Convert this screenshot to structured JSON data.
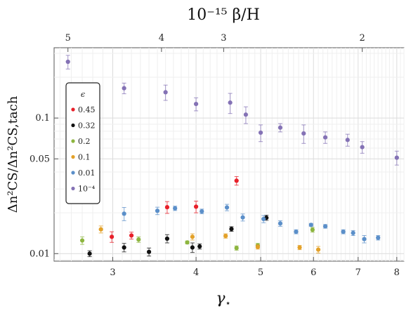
{
  "chart_data": {
    "type": "scatter",
    "xscale": "log",
    "yscale": "log",
    "xlim": [
      2.45,
      8.2
    ],
    "ylim": [
      0.0088,
      0.33
    ],
    "xticks": [
      3,
      4,
      5,
      6,
      7,
      8
    ],
    "yticks": [
      0.01,
      0.05,
      0.1
    ],
    "ytick_labels": [
      "0.01",
      "0.05",
      "0.1"
    ],
    "top_ticks": [
      {
        "gamma": 2.57,
        "label": "5"
      },
      {
        "gamma": 3.55,
        "label": "4"
      },
      {
        "gamma": 4.4,
        "label": "3"
      },
      {
        "gamma": 7.1,
        "label": "2"
      }
    ],
    "xlabel_main": "γ",
    "xlabel_sub": "⋆",
    "top_label": "10⁻¹⁵ β/H",
    "ylabel": "Δn²CS/Δn²CS,tach",
    "grid": true,
    "legend": {
      "title": "ϵ",
      "position": "left"
    },
    "series": [
      {
        "name": "0.45",
        "color": "#e8202a",
        "points": [
          {
            "x": 2.99,
            "y": 0.0133,
            "err": 0.0012
          },
          {
            "x": 3.2,
            "y": 0.0136,
            "err": 0.0008
          },
          {
            "x": 3.62,
            "y": 0.022,
            "err": 0.0022
          },
          {
            "x": 4.0,
            "y": 0.0222,
            "err": 0.0022
          },
          {
            "x": 4.6,
            "y": 0.0345,
            "err": 0.0025
          }
        ]
      },
      {
        "name": "0.32",
        "color": "#111111",
        "points": [
          {
            "x": 2.77,
            "y": 0.01,
            "err": 0.0005
          },
          {
            "x": 3.12,
            "y": 0.0111,
            "err": 0.0008
          },
          {
            "x": 3.4,
            "y": 0.0103,
            "err": 0.0007
          },
          {
            "x": 3.62,
            "y": 0.0129,
            "err": 0.0009
          },
          {
            "x": 3.95,
            "y": 0.0111,
            "err": 0.0009
          },
          {
            "x": 4.05,
            "y": 0.0113,
            "err": 0.0005
          },
          {
            "x": 4.52,
            "y": 0.0152,
            "err": 0.0006
          },
          {
            "x": 5.1,
            "y": 0.0184,
            "err": 0.0008
          }
        ]
      },
      {
        "name": "0.2",
        "color": "#8db53f",
        "points": [
          {
            "x": 2.7,
            "y": 0.0125,
            "err": 0.0008
          },
          {
            "x": 3.28,
            "y": 0.0127,
            "err": 0.0006
          },
          {
            "x": 3.88,
            "y": 0.0121,
            "err": 0.0003
          },
          {
            "x": 4.6,
            "y": 0.011,
            "err": 0.0004
          },
          {
            "x": 4.95,
            "y": 0.0115,
            "err": 0.0004
          },
          {
            "x": 5.98,
            "y": 0.015,
            "err": 0.0006
          }
        ]
      },
      {
        "name": "0.1",
        "color": "#e3a129",
        "points": [
          {
            "x": 2.88,
            "y": 0.0151,
            "err": 0.0009
          },
          {
            "x": 3.95,
            "y": 0.0133,
            "err": 0.0007
          },
          {
            "x": 4.43,
            "y": 0.0135,
            "err": 0.0005
          },
          {
            "x": 4.95,
            "y": 0.0112,
            "err": 0.0004
          },
          {
            "x": 5.72,
            "y": 0.0111,
            "err": 0.0004
          },
          {
            "x": 6.1,
            "y": 0.0107,
            "err": 0.0006
          }
        ]
      },
      {
        "name": "0.01",
        "color": "#5b8fc9",
        "points": [
          {
            "x": 3.12,
            "y": 0.0197,
            "err": 0.0022
          },
          {
            "x": 3.5,
            "y": 0.0207,
            "err": 0.0013
          },
          {
            "x": 3.72,
            "y": 0.0216,
            "err": 0.0008
          },
          {
            "x": 4.08,
            "y": 0.0205,
            "err": 0.0008
          },
          {
            "x": 4.45,
            "y": 0.0219,
            "err": 0.0012
          },
          {
            "x": 4.7,
            "y": 0.0185,
            "err": 0.0011
          },
          {
            "x": 5.05,
            "y": 0.018,
            "err": 0.0011
          },
          {
            "x": 5.35,
            "y": 0.0167,
            "err": 0.0008
          },
          {
            "x": 5.65,
            "y": 0.0145,
            "err": 0.0005
          },
          {
            "x": 5.95,
            "y": 0.0163,
            "err": 0.0004
          },
          {
            "x": 6.25,
            "y": 0.0159,
            "err": 0.0005
          },
          {
            "x": 6.65,
            "y": 0.0145,
            "err": 0.0005
          },
          {
            "x": 6.88,
            "y": 0.0142,
            "err": 0.0006
          },
          {
            "x": 7.15,
            "y": 0.0128,
            "err": 0.0008
          },
          {
            "x": 7.5,
            "y": 0.0131,
            "err": 0.0005
          }
        ]
      },
      {
        "name": "10⁻⁴",
        "color": "#8472b5",
        "points": [
          {
            "x": 2.57,
            "y": 0.26,
            "err": 0.03
          },
          {
            "x": 3.12,
            "y": 0.166,
            "err": 0.015
          },
          {
            "x": 3.6,
            "y": 0.155,
            "err": 0.02
          },
          {
            "x": 4.0,
            "y": 0.127,
            "err": 0.014
          },
          {
            "x": 4.5,
            "y": 0.13,
            "err": 0.022
          },
          {
            "x": 4.75,
            "y": 0.106,
            "err": 0.015
          },
          {
            "x": 5.0,
            "y": 0.078,
            "err": 0.011
          },
          {
            "x": 5.35,
            "y": 0.085,
            "err": 0.006
          },
          {
            "x": 5.8,
            "y": 0.077,
            "err": 0.012
          },
          {
            "x": 6.25,
            "y": 0.072,
            "err": 0.007
          },
          {
            "x": 6.75,
            "y": 0.069,
            "err": 0.007
          },
          {
            "x": 7.1,
            "y": 0.061,
            "err": 0.006
          },
          {
            "x": 8.0,
            "y": 0.051,
            "err": 0.006
          }
        ]
      }
    ]
  }
}
